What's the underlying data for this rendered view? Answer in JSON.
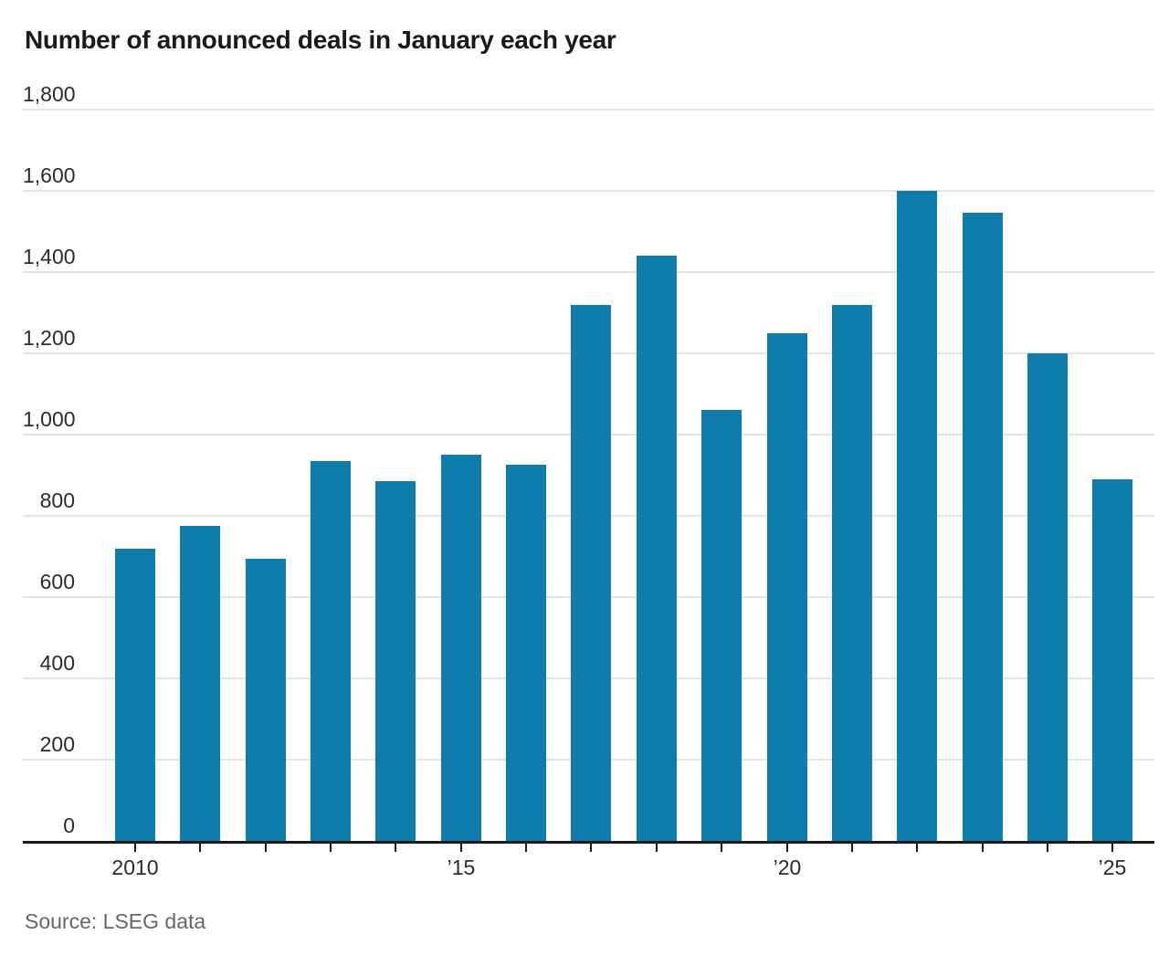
{
  "title": "Number of announced deals in January each year",
  "source": "Source: LSEG data",
  "colors": {
    "bar": "#0e7dab",
    "gridline": "#e4e4e4",
    "axis": "#1a1a1a",
    "tick": "#1a1a1a",
    "title_text": "#1a1a1a",
    "axis_label_text": "#2b2b2b",
    "source_text": "#666666",
    "background": "#ffffff"
  },
  "chart_data": {
    "type": "bar",
    "title": "Number of announced deals in January each year",
    "xlabel": "",
    "ylabel": "",
    "categories": [
      2010,
      2011,
      2012,
      2013,
      2014,
      2015,
      2016,
      2017,
      2018,
      2019,
      2020,
      2021,
      2022,
      2023,
      2024,
      2025
    ],
    "values": [
      720,
      775,
      695,
      935,
      885,
      950,
      925,
      1320,
      1440,
      1060,
      1250,
      1320,
      1600,
      1545,
      1200,
      890
    ],
    "ylim": [
      0,
      1800
    ],
    "yticks": [
      0,
      200,
      400,
      600,
      800,
      1000,
      1200,
      1400,
      1600,
      1800
    ],
    "ytick_labels": [
      "0",
      "200",
      "400",
      "600",
      "800",
      "1,000",
      "1,200",
      "1,400",
      "1,600",
      "1,800"
    ],
    "xtick_labels": [
      "2010",
      "",
      "",
      "",
      "",
      "’15",
      "",
      "",
      "",
      "",
      "’20",
      "",
      "",
      "",
      "",
      "’25"
    ],
    "grid": true,
    "legend_position": "none",
    "bar_color": "#0e7dab"
  }
}
